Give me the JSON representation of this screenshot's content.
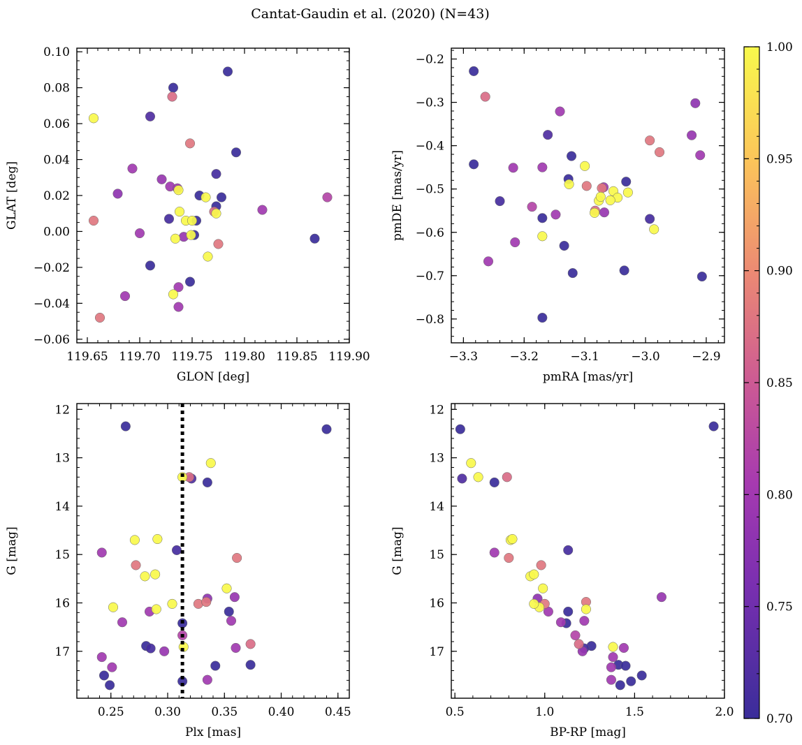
{
  "chart_data": {
    "title": "Cantat-Gaudin et al. (2020) (N=43)",
    "colormap": "plasma",
    "colorbar": {
      "vmin": 0.7,
      "vmax": 1.0,
      "ticks": [
        "0.70",
        "0.75",
        "0.80",
        "0.85",
        "0.90",
        "0.95",
        "1.00"
      ]
    },
    "members": [
      {
        "glon": 119.784,
        "glat": 0.089,
        "pmra": -3.283,
        "pmde": -0.228,
        "plx": 0.263,
        "g": 12.35,
        "bprp": 1.94,
        "p": 0.7
      },
      {
        "glon": 119.732,
        "glat": 0.08,
        "pmra": -3.283,
        "pmde": -0.443,
        "plx": 0.44,
        "g": 12.41,
        "bprp": 0.53,
        "p": 0.7
      },
      {
        "glon": 119.71,
        "glat": 0.064,
        "pmra": -3.161,
        "pmde": -0.375,
        "plx": 0.321,
        "g": 13.43,
        "bprp": 0.54,
        "p": 0.72
      },
      {
        "glon": 119.792,
        "glat": 0.044,
        "pmra": -3.122,
        "pmde": -0.424,
        "plx": 0.335,
        "g": 13.51,
        "bprp": 0.72,
        "p": 0.7
      },
      {
        "glon": 119.773,
        "glat": 0.032,
        "pmra": -3.24,
        "pmde": -0.528,
        "plx": 0.308,
        "g": 14.91,
        "bprp": 1.13,
        "p": 0.71
      },
      {
        "glon": 119.757,
        "glat": 0.02,
        "pmra": -3.127,
        "pmde": -0.477,
        "plx": 0.354,
        "g": 16.18,
        "bprp": 1.13,
        "p": 0.7
      },
      {
        "glon": 119.778,
        "glat": 0.019,
        "pmra": -3.032,
        "pmde": -0.483,
        "plx": 0.313,
        "g": 16.42,
        "bprp": 1.12,
        "p": 0.7
      },
      {
        "glon": 119.773,
        "glat": 0.014,
        "pmra": -3.17,
        "pmde": -0.567,
        "plx": 0.281,
        "g": 16.89,
        "bprp": 1.26,
        "p": 0.7
      },
      {
        "glon": 119.728,
        "glat": 0.007,
        "pmra": -2.993,
        "pmde": -0.569,
        "plx": 0.285,
        "g": 16.94,
        "bprp": 1.22,
        "p": 0.71
      },
      {
        "glon": 119.754,
        "glat": 0.006,
        "pmra": -3.134,
        "pmde": -0.631,
        "plx": 0.373,
        "g": 17.28,
        "bprp": 1.41,
        "p": 0.7
      },
      {
        "glon": 119.752,
        "glat": -0.002,
        "pmra": -3.12,
        "pmde": -0.694,
        "plx": 0.342,
        "g": 17.3,
        "bprp": 1.45,
        "p": 0.7
      },
      {
        "glon": 119.867,
        "glat": -0.004,
        "pmra": -3.035,
        "pmde": -0.688,
        "plx": 0.244,
        "g": 17.5,
        "bprp": 1.54,
        "p": 0.7
      },
      {
        "glon": 119.71,
        "glat": -0.019,
        "pmra": -2.907,
        "pmde": -0.702,
        "plx": 0.313,
        "g": 17.62,
        "bprp": 1.48,
        "p": 0.7
      },
      {
        "glon": 119.748,
        "glat": -0.028,
        "pmra": -3.17,
        "pmde": -0.797,
        "plx": 0.249,
        "g": 17.7,
        "bprp": 1.42,
        "p": 0.7
      },
      {
        "glon": 119.731,
        "glat": 0.075,
        "pmra": -3.264,
        "pmde": -0.287,
        "plx": 0.319,
        "g": 13.4,
        "bprp": 0.79,
        "p": 0.87
      },
      {
        "glon": 119.748,
        "glat": 0.049,
        "pmra": -2.993,
        "pmde": -0.388,
        "plx": 0.272,
        "g": 15.22,
        "bprp": 0.98,
        "p": 0.88
      },
      {
        "glon": 119.656,
        "glat": 0.006,
        "pmra": -2.977,
        "pmde": -0.415,
        "plx": 0.361,
        "g": 15.07,
        "bprp": 0.8,
        "p": 0.88
      },
      {
        "glon": 119.775,
        "glat": -0.007,
        "pmra": -3.097,
        "pmde": -0.493,
        "plx": 0.327,
        "g": 16.02,
        "bprp": 1.0,
        "p": 0.88
      },
      {
        "glon": 119.662,
        "glat": -0.048,
        "pmra": -3.072,
        "pmde": -0.498,
        "plx": 0.334,
        "g": 15.98,
        "bprp": 1.23,
        "p": 0.88
      },
      {
        "glon": 119.771,
        "glat": 0.011,
        "pmra": -3.083,
        "pmde": -0.55,
        "plx": 0.373,
        "g": 16.85,
        "bprp": 1.19,
        "p": 0.87
      },
      {
        "glon": 119.693,
        "glat": 0.035,
        "pmra": -3.141,
        "pmde": -0.321,
        "plx": 0.242,
        "g": 14.96,
        "bprp": 0.72,
        "p": 0.8
      },
      {
        "glon": 119.679,
        "glat": 0.021,
        "pmra": -2.918,
        "pmde": -0.302,
        "plx": 0.335,
        "g": 15.91,
        "bprp": 0.96,
        "p": 0.78
      },
      {
        "glon": 119.721,
        "glat": 0.029,
        "pmra": -2.924,
        "pmde": -0.376,
        "plx": 0.359,
        "g": 15.88,
        "bprp": 1.65,
        "p": 0.79
      },
      {
        "glon": 119.729,
        "glat": 0.025,
        "pmra": -3.218,
        "pmde": -0.451,
        "plx": 0.26,
        "g": 16.4,
        "bprp": 1.09,
        "p": 0.8
      },
      {
        "glon": 119.736,
        "glat": 0.024,
        "pmra": -2.91,
        "pmde": -0.422,
        "plx": 0.284,
        "g": 16.18,
        "bprp": 1.02,
        "p": 0.8
      },
      {
        "glon": 119.817,
        "glat": 0.012,
        "pmra": -3.069,
        "pmde": -0.496,
        "plx": 0.356,
        "g": 16.37,
        "bprp": 1.22,
        "p": 0.8
      },
      {
        "glon": 119.879,
        "glat": 0.019,
        "pmra": -3.187,
        "pmde": -0.541,
        "plx": 0.313,
        "g": 16.67,
        "bprp": 1.17,
        "p": 0.82
      },
      {
        "glon": 119.7,
        "glat": -0.001,
        "pmra": -3.148,
        "pmde": -0.559,
        "plx": 0.36,
        "g": 16.93,
        "bprp": 1.44,
        "p": 0.8
      },
      {
        "glon": 119.742,
        "glat": -0.003,
        "pmra": -3.068,
        "pmde": -0.554,
        "plx": 0.297,
        "g": 17.0,
        "bprp": 1.21,
        "p": 0.79
      },
      {
        "glon": 119.737,
        "glat": -0.031,
        "pmra": -3.215,
        "pmde": -0.623,
        "plx": 0.242,
        "g": 17.12,
        "bprp": 1.38,
        "p": 0.8
      },
      {
        "glon": 119.686,
        "glat": -0.036,
        "pmra": -3.259,
        "pmde": -0.667,
        "plx": 0.251,
        "g": 17.33,
        "bprp": 1.37,
        "p": 0.8
      },
      {
        "glon": 119.737,
        "glat": -0.042,
        "pmra": -3.17,
        "pmde": -0.45,
        "plx": 0.335,
        "g": 17.59,
        "bprp": 1.37,
        "p": 0.8
      },
      {
        "glon": 119.656,
        "glat": 0.063,
        "pmra": -3.1,
        "pmde": -0.447,
        "plx": 0.338,
        "g": 13.11,
        "bprp": 0.59,
        "p": 1.0
      },
      {
        "glon": 119.737,
        "glat": 0.023,
        "pmra": -3.126,
        "pmde": -0.489,
        "plx": 0.313,
        "g": 13.4,
        "bprp": 0.63,
        "p": 1.0
      },
      {
        "glon": 119.763,
        "glat": 0.019,
        "pmra": -3.077,
        "pmde": -0.527,
        "plx": 0.271,
        "g": 14.7,
        "bprp": 0.81,
        "p": 1.0
      },
      {
        "glon": 119.738,
        "glat": 0.011,
        "pmra": -3.074,
        "pmde": -0.518,
        "plx": 0.291,
        "g": 14.68,
        "bprp": 0.82,
        "p": 1.0
      },
      {
        "glon": 119.744,
        "glat": 0.006,
        "pmra": -3.053,
        "pmde": -0.505,
        "plx": 0.28,
        "g": 15.45,
        "bprp": 0.92,
        "p": 1.0
      },
      {
        "glon": 119.75,
        "glat": 0.006,
        "pmra": -3.046,
        "pmde": -0.52,
        "plx": 0.289,
        "g": 15.41,
        "bprp": 0.94,
        "p": 1.0
      },
      {
        "glon": 119.773,
        "glat": 0.01,
        "pmra": -3.058,
        "pmde": -0.526,
        "plx": 0.352,
        "g": 15.7,
        "bprp": 0.99,
        "p": 1.0
      },
      {
        "glon": 119.749,
        "glat": -0.002,
        "pmra": -3.029,
        "pmde": -0.508,
        "plx": 0.252,
        "g": 16.09,
        "bprp": 0.97,
        "p": 1.0
      },
      {
        "glon": 119.734,
        "glat": -0.004,
        "pmra": -3.084,
        "pmde": -0.555,
        "plx": 0.29,
        "g": 16.13,
        "bprp": 1.23,
        "p": 1.0
      },
      {
        "glon": 119.765,
        "glat": -0.014,
        "pmra": -2.986,
        "pmde": -0.593,
        "plx": 0.304,
        "g": 16.02,
        "bprp": 0.94,
        "p": 1.0
      },
      {
        "glon": 119.732,
        "glat": -0.035,
        "pmra": -3.17,
        "pmde": -0.609,
        "plx": 0.314,
        "g": 16.91,
        "bprp": 1.38,
        "p": 1.0
      }
    ],
    "panels": [
      {
        "id": "glon-glat",
        "x": "glon",
        "y": "glat",
        "xlabel": "GLON [deg]",
        "ylabel": "GLAT [deg]",
        "xlim": [
          119.64,
          119.9
        ],
        "ylim": [
          -0.062,
          0.102
        ],
        "yinvert": false,
        "xticks": [
          119.65,
          119.7,
          119.75,
          119.8,
          119.85,
          119.9
        ],
        "xticklabels": [
          "119.65",
          "119.70",
          "119.75",
          "119.80",
          "119.85",
          "119.90"
        ],
        "yticks": [
          -0.06,
          -0.04,
          -0.02,
          0.0,
          0.02,
          0.04,
          0.06,
          0.08,
          0.1
        ],
        "yticklabels": [
          "−0.06",
          "−0.04",
          "−0.02",
          "0.00",
          "0.02",
          "0.04",
          "0.06",
          "0.08",
          "0.10"
        ],
        "xminor": 0.01,
        "yminor": 0.005
      },
      {
        "id": "pmra-pmde",
        "x": "pmra",
        "y": "pmde",
        "xlabel": "pmRA [mas/yr]",
        "ylabel": "pmDE [mas/yr]",
        "xlim": [
          -3.32,
          -2.87
        ],
        "ylim": [
          -0.855,
          -0.175
        ],
        "yinvert": false,
        "xticks": [
          -3.3,
          -3.2,
          -3.1,
          -3.0,
          -2.9
        ],
        "xticklabels": [
          "−3.3",
          "−3.2",
          "−3.1",
          "−3.0",
          "−2.9"
        ],
        "yticks": [
          -0.8,
          -0.7,
          -0.6,
          -0.5,
          -0.4,
          -0.3,
          -0.2
        ],
        "yticklabels": [
          "−0.8",
          "−0.7",
          "−0.6",
          "−0.5",
          "−0.4",
          "−0.3",
          "−0.2"
        ],
        "xminor": 0.02,
        "yminor": 0.02
      },
      {
        "id": "plx-g",
        "x": "plx",
        "y": "g",
        "xlabel": "Plx [mas]",
        "ylabel": "G [mag]",
        "xlim": [
          0.22,
          0.46
        ],
        "ylim": [
          11.88,
          17.97
        ],
        "yinvert": true,
        "xticks": [
          0.25,
          0.3,
          0.35,
          0.4,
          0.45
        ],
        "xticklabels": [
          "0.25",
          "0.30",
          "0.35",
          "0.40",
          "0.45"
        ],
        "yticks": [
          12,
          13,
          14,
          15,
          16,
          17
        ],
        "yticklabels": [
          "12",
          "13",
          "14",
          "15",
          "16",
          "17"
        ],
        "xminor": 0.01,
        "yminor": 0.2,
        "vline": 0.313
      },
      {
        "id": "bprp-g",
        "x": "bprp",
        "y": "g",
        "xlabel": "BP-RP [mag]",
        "ylabel": "G [mag]",
        "xlim": [
          0.48,
          2.0
        ],
        "ylim": [
          11.88,
          17.97
        ],
        "yinvert": true,
        "xticks": [
          0.5,
          1.0,
          1.5,
          2.0
        ],
        "xticklabels": [
          "0.5",
          "1.0",
          "1.5",
          "2.0"
        ],
        "yticks": [
          12,
          13,
          14,
          15,
          16,
          17
        ],
        "yticklabels": [
          "12",
          "13",
          "14",
          "15",
          "16",
          "17"
        ],
        "xminor": 0.1,
        "yminor": 0.2
      }
    ]
  }
}
